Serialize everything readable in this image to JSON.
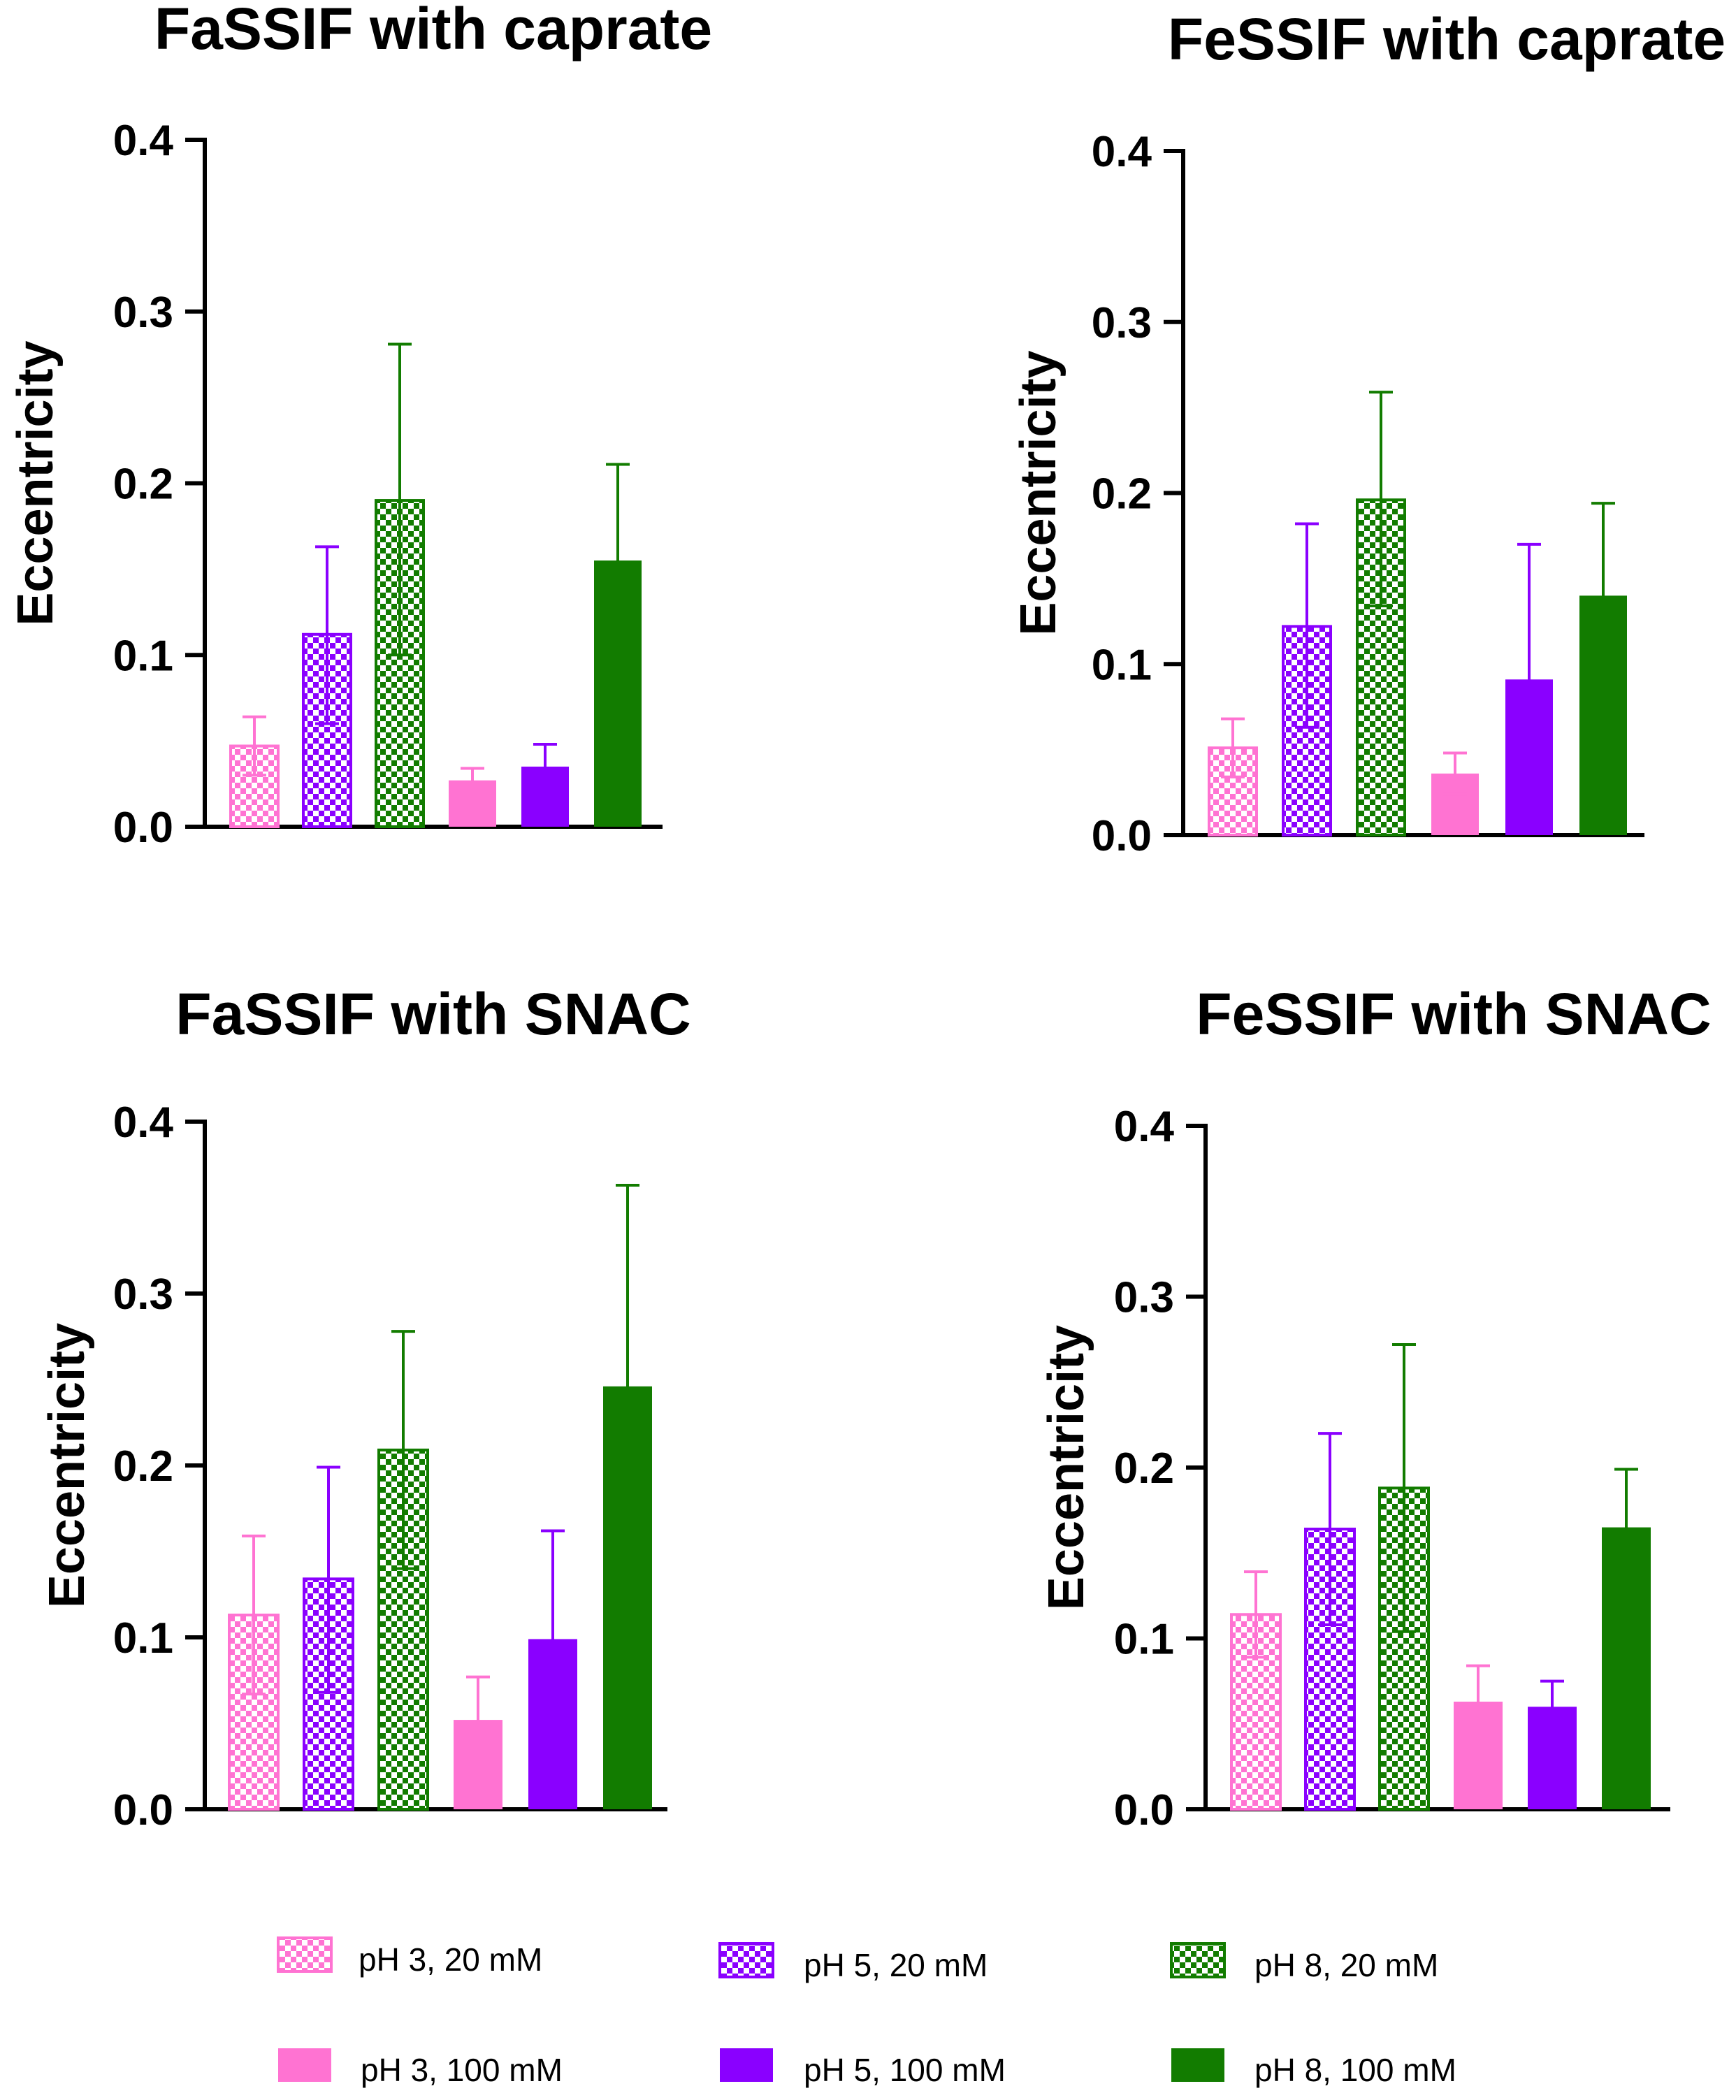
{
  "colors": {
    "pH3": "#ff73d2",
    "pH5": "#8a00ff",
    "pH8": "#127c00"
  },
  "legend": {
    "items": [
      {
        "label": "pH 3, 20 mM",
        "color_key": "pH3",
        "fill": "checker"
      },
      {
        "label": "pH 5, 20 mM",
        "color_key": "pH5",
        "fill": "checker"
      },
      {
        "label": "pH 8, 20 mM",
        "color_key": "pH8",
        "fill": "checker"
      },
      {
        "label": "pH 3, 100 mM",
        "color_key": "pH3",
        "fill": "solid"
      },
      {
        "label": "pH 5, 100 mM",
        "color_key": "pH5",
        "fill": "solid"
      },
      {
        "label": "pH 8, 100 mM",
        "color_key": "pH8",
        "fill": "solid"
      }
    ]
  },
  "chart_data": [
    {
      "type": "bar",
      "title": "FaSSIF with caprate",
      "ylabel": "Eccentricity",
      "xlabel": "",
      "ylim": [
        0,
        0.4
      ],
      "yticks": [
        "0.0",
        "0.1",
        "0.2",
        "0.3",
        "0.4"
      ],
      "series": [
        {
          "name": "pH 3, 20 mM",
          "value": 0.047,
          "error_low": 0.03,
          "error_high": 0.064
        },
        {
          "name": "pH 5, 20 mM",
          "value": 0.112,
          "error_low": 0.06,
          "error_high": 0.163
        },
        {
          "name": "pH 8, 20 mM",
          "value": 0.19,
          "error_low": 0.1,
          "error_high": 0.281
        },
        {
          "name": "pH 3, 100 mM",
          "value": 0.027,
          "error_low": 0.02,
          "error_high": 0.034
        },
        {
          "name": "pH 5, 100 mM",
          "value": 0.035,
          "error_low": 0.022,
          "error_high": 0.048
        },
        {
          "name": "pH 8, 100 mM",
          "value": 0.155,
          "error_low": 0.1,
          "error_high": 0.211
        }
      ]
    },
    {
      "type": "bar",
      "title": "FeSSIF with caprate",
      "ylabel": "Eccentricity",
      "xlabel": "",
      "ylim": [
        0,
        0.4
      ],
      "yticks": [
        "0.0",
        "0.1",
        "0.2",
        "0.3",
        "0.4"
      ],
      "series": [
        {
          "name": "pH 3, 20 mM",
          "value": 0.051,
          "error_low": 0.034,
          "error_high": 0.068
        },
        {
          "name": "pH 5, 20 mM",
          "value": 0.122,
          "error_low": 0.063,
          "error_high": 0.182
        },
        {
          "name": "pH 8, 20 mM",
          "value": 0.196,
          "error_low": 0.134,
          "error_high": 0.259
        },
        {
          "name": "pH 3, 100 mM",
          "value": 0.036,
          "error_low": 0.024,
          "error_high": 0.048
        },
        {
          "name": "pH 5, 100 mM",
          "value": 0.091,
          "error_low": 0.012,
          "error_high": 0.17
        },
        {
          "name": "pH 8, 100 mM",
          "value": 0.14,
          "error_low": 0.085,
          "error_high": 0.194
        }
      ]
    },
    {
      "type": "bar",
      "title": "FaSSIF with SNAC",
      "ylabel": "Eccentricity",
      "xlabel": "",
      "ylim": [
        0,
        0.4
      ],
      "yticks": [
        "0.0",
        "0.1",
        "0.2",
        "0.3",
        "0.4"
      ],
      "series": [
        {
          "name": "pH 3, 20 mM",
          "value": 0.113,
          "error_low": 0.067,
          "error_high": 0.159
        },
        {
          "name": "pH 5, 20 mM",
          "value": 0.134,
          "error_low": 0.068,
          "error_high": 0.199
        },
        {
          "name": "pH 8, 20 mM",
          "value": 0.209,
          "error_low": 0.14,
          "error_high": 0.278
        },
        {
          "name": "pH 3, 100 mM",
          "value": 0.052,
          "error_low": 0.026,
          "error_high": 0.077
        },
        {
          "name": "pH 5, 100 mM",
          "value": 0.099,
          "error_low": 0.036,
          "error_high": 0.162
        },
        {
          "name": "pH 8, 100 mM",
          "value": 0.246,
          "error_low": 0.129,
          "error_high": 0.363
        }
      ]
    },
    {
      "type": "bar",
      "title": "FeSSIF with SNAC",
      "ylabel": "Eccentricity",
      "xlabel": "",
      "ylim": [
        0,
        0.4
      ],
      "yticks": [
        "0.0",
        "0.1",
        "0.2",
        "0.3",
        "0.4"
      ],
      "series": [
        {
          "name": "pH 3, 20 mM",
          "value": 0.114,
          "error_low": 0.089,
          "error_high": 0.139
        },
        {
          "name": "pH 5, 20 mM",
          "value": 0.164,
          "error_low": 0.108,
          "error_high": 0.22
        },
        {
          "name": "pH 8, 20 mM",
          "value": 0.188,
          "error_low": 0.104,
          "error_high": 0.272
        },
        {
          "name": "pH 3, 100 mM",
          "value": 0.063,
          "error_low": 0.043,
          "error_high": 0.084
        },
        {
          "name": "pH 5, 100 mM",
          "value": 0.06,
          "error_low": 0.045,
          "error_high": 0.075
        },
        {
          "name": "pH 8, 100 mM",
          "value": 0.165,
          "error_low": 0.131,
          "error_high": 0.199
        }
      ]
    }
  ]
}
